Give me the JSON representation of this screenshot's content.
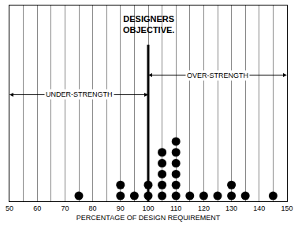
{
  "chart_data": {
    "type": "dot",
    "x": [
      75,
      90,
      95,
      100,
      105,
      110,
      115,
      120,
      125,
      130,
      135,
      145
    ],
    "values": [
      1,
      2,
      1,
      2,
      5,
      6,
      1,
      1,
      1,
      2,
      1,
      1
    ],
    "color": "#000000",
    "x_label": "PERCENTAGE OF DESIGN REQUIREMENT",
    "xlim": [
      50,
      150
    ],
    "xticks": [
      50,
      60,
      70,
      80,
      90,
      100,
      110,
      120,
      130,
      140,
      150
    ],
    "ylim": [
      0,
      18
    ],
    "grid": true,
    "tick_labels": "x",
    "objective": {
      "text": "DESIGNERS OBJECTIVE.",
      "x": 100
    },
    "annotations": [
      {
        "text": "UNDER-STRENGTH",
        "x": [
          50,
          100
        ]
      },
      {
        "text": "OVER-STRENGTH",
        "x": [
          100,
          150
        ]
      }
    ]
  }
}
